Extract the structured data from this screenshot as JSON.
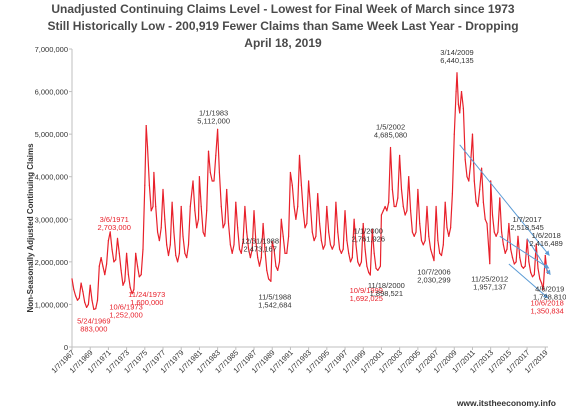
{
  "chart_data": {
    "type": "line",
    "title_lines": [
      "Unadjusted Continuing Claims Level - Lowest for Final Week of March since 1973",
      "Still Historically Low - 200,919 Fewer Claims than Same Week Last Year - Dropping",
      "April 18, 2019"
    ],
    "ylabel": "Non-Seasonally Adjusted Continuing Claims",
    "xlabel": "",
    "ylim": [
      0,
      7000000
    ],
    "y_ticks": [
      "0",
      "1,000,000",
      "2,000,000",
      "3,000,000",
      "4,000,000",
      "5,000,000",
      "6,000,000",
      "7,000,000"
    ],
    "x_ticks": [
      "1/7/1967",
      "1/7/1969",
      "1/7/1971",
      "1/7/1973",
      "1/7/1975",
      "1/7/1977",
      "1/7/1979",
      "1/7/1981",
      "1/7/1983",
      "1/7/1985",
      "1/7/1987",
      "1/7/1989",
      "1/7/1991",
      "1/7/1993",
      "1/7/1995",
      "1/7/1997",
      "1/7/1999",
      "1/7/2001",
      "1/7/2003",
      "1/7/2005",
      "1/7/2007",
      "1/7/2009",
      "1/7/2011",
      "1/7/2013",
      "1/7/2015",
      "1/7/2017",
      "1/7/2019"
    ],
    "grid": false,
    "series": [
      {
        "color": "#e8212b",
        "x": [
          1967.0,
          1967.2,
          1967.4,
          1967.6,
          1967.8,
          1968.0,
          1968.2,
          1968.4,
          1968.6,
          1968.8,
          1969.0,
          1969.2,
          1969.4,
          1969.6,
          1969.8,
          1970.0,
          1970.2,
          1970.4,
          1970.6,
          1970.8,
          1971.0,
          1971.2,
          1971.4,
          1971.6,
          1971.8,
          1972.0,
          1972.2,
          1972.4,
          1972.6,
          1972.8,
          1973.0,
          1973.2,
          1973.4,
          1973.6,
          1973.8,
          1974.0,
          1974.2,
          1974.4,
          1974.6,
          1974.8,
          1975.0,
          1975.15,
          1975.3,
          1975.5,
          1975.7,
          1975.9,
          1976.0,
          1976.2,
          1976.4,
          1976.6,
          1976.8,
          1977.0,
          1977.2,
          1977.4,
          1977.6,
          1977.8,
          1978.0,
          1978.2,
          1978.4,
          1978.6,
          1978.8,
          1979.0,
          1979.2,
          1979.4,
          1979.6,
          1979.8,
          1980.0,
          1980.3,
          1980.5,
          1980.7,
          1980.9,
          1981.0,
          1981.2,
          1981.4,
          1981.6,
          1981.8,
          1982.0,
          1982.2,
          1982.4,
          1982.6,
          1982.8,
          1983.0,
          1983.2,
          1983.4,
          1983.6,
          1983.8,
          1984.0,
          1984.2,
          1984.4,
          1984.6,
          1984.8,
          1985.0,
          1985.2,
          1985.4,
          1985.6,
          1985.8,
          1986.0,
          1986.2,
          1986.4,
          1986.6,
          1986.8,
          1987.0,
          1987.2,
          1987.4,
          1987.6,
          1987.8,
          1988.0,
          1988.2,
          1988.4,
          1988.6,
          1988.85,
          1989.0,
          1989.2,
          1989.4,
          1989.6,
          1989.8,
          1990.0,
          1990.2,
          1990.4,
          1990.6,
          1990.8,
          1991.0,
          1991.2,
          1991.4,
          1991.6,
          1991.8,
          1992.0,
          1992.2,
          1992.4,
          1992.6,
          1992.8,
          1993.0,
          1993.2,
          1993.4,
          1993.6,
          1993.8,
          1994.0,
          1994.2,
          1994.4,
          1994.6,
          1994.8,
          1995.0,
          1995.2,
          1995.4,
          1995.6,
          1995.8,
          1996.0,
          1996.2,
          1996.4,
          1996.6,
          1996.8,
          1997.0,
          1997.2,
          1997.4,
          1997.6,
          1997.8,
          1998.0,
          1998.2,
          1998.4,
          1998.6,
          1998.8,
          1999.0,
          1999.2,
          1999.4,
          1999.6,
          1999.77,
          2000.0,
          2000.2,
          2000.4,
          2000.6,
          2000.88,
          2001.0,
          2001.2,
          2001.4,
          2001.6,
          2001.8,
          2002.0,
          2002.2,
          2002.4,
          2002.6,
          2002.8,
          2003.0,
          2003.2,
          2003.4,
          2003.6,
          2003.8,
          2004.0,
          2004.2,
          2004.4,
          2004.6,
          2004.8,
          2005.0,
          2005.2,
          2005.4,
          2005.6,
          2005.8,
          2006.0,
          2006.2,
          2006.4,
          2006.77,
          2007.0,
          2007.2,
          2007.4,
          2007.6,
          2007.8,
          2008.0,
          2008.2,
          2008.4,
          2008.6,
          2008.8,
          2009.0,
          2009.2,
          2009.3,
          2009.45,
          2009.6,
          2009.8,
          2010.0,
          2010.2,
          2010.4,
          2010.6,
          2010.8,
          2011.0,
          2011.2,
          2011.4,
          2011.6,
          2011.8,
          2012.0,
          2012.2,
          2012.4,
          2012.6,
          2012.9,
          2013.0,
          2013.2,
          2013.4,
          2013.6,
          2013.8,
          2014.0,
          2014.2,
          2014.4,
          2014.6,
          2014.8,
          2015.0,
          2015.2,
          2015.4,
          2015.6,
          2015.8,
          2016.0,
          2016.2,
          2016.4,
          2016.6,
          2016.8,
          2017.0,
          2017.2,
          2017.4,
          2017.6,
          2017.8,
          2018.0,
          2018.2,
          2018.4,
          2018.6,
          2018.77,
          2019.0,
          2019.15,
          2019.27
        ],
        "values": [
          1600000,
          1350000,
          1200000,
          1100000,
          1150000,
          1500000,
          1300000,
          1050000,
          930000,
          1000000,
          1450000,
          1100000,
          883000,
          900000,
          1100000,
          1900000,
          2100000,
          1900000,
          1700000,
          1950000,
          2500000,
          2703000,
          2300000,
          2000000,
          2050000,
          2550000,
          2200000,
          1800000,
          1450000,
          1550000,
          2200000,
          1700000,
          1400000,
          1252000,
          1350000,
          2200000,
          1900000,
          1650000,
          1700000,
          2300000,
          3800000,
          5200000,
          4700000,
          3800000,
          3200000,
          3300000,
          4100000,
          3300000,
          2700000,
          2500000,
          2800000,
          3700000,
          3000000,
          2400000,
          2150000,
          2400000,
          3400000,
          2700000,
          2150000,
          2000000,
          2200000,
          3300000,
          2600000,
          2200000,
          2100000,
          2400000,
          3300000,
          3900000,
          3200000,
          2800000,
          3000000,
          4000000,
          3300000,
          2700000,
          2600000,
          3200000,
          4600000,
          4100000,
          3900000,
          3900000,
          4500000,
          5112000,
          4100000,
          3300000,
          2800000,
          2900000,
          3700000,
          2900000,
          2400000,
          2200000,
          2400000,
          3400000,
          2800000,
          2300000,
          2200000,
          2500000,
          3300000,
          2700000,
          2300000,
          2100000,
          2300000,
          3200000,
          2500000,
          2100000,
          1900000,
          2100000,
          2900000,
          2300000,
          1800000,
          1600000,
          1542684,
          2473167,
          2300000,
          1900000,
          1800000,
          2000000,
          3000000,
          2600000,
          2200000,
          2200000,
          2600000,
          4100000,
          3800000,
          3300000,
          3000000,
          3300000,
          4500000,
          3800000,
          3200000,
          2800000,
          2900000,
          3900000,
          3300000,
          2700000,
          2500000,
          2600000,
          3600000,
          2900000,
          2500000,
          2300000,
          2400000,
          3300000,
          2700000,
          2400000,
          2300000,
          2400000,
          3400000,
          2700000,
          2300000,
          2200000,
          2300000,
          3200000,
          2500000,
          2200000,
          2000000,
          2100000,
          3000000,
          2400000,
          2000000,
          1900000,
          2000000,
          2900000,
          2300000,
          1900000,
          1750000,
          1692025,
          2761926,
          2200000,
          1850000,
          1800000,
          1898521,
          3100000,
          3200000,
          3300000,
          3200000,
          3400000,
          4685080,
          3700000,
          3300000,
          3300000,
          3500000,
          4500000,
          3700000,
          3300000,
          3100000,
          3200000,
          4000000,
          3200000,
          2700000,
          2600000,
          2700000,
          3700000,
          2900000,
          2500000,
          2400000,
          2500000,
          3300000,
          2600000,
          2300000,
          2030299,
          3300000,
          2500000,
          2200000,
          2150000,
          2400000,
          3400000,
          2800000,
          2600000,
          2800000,
          3600000,
          5000000,
          6000000,
          6440135,
          5700000,
          5500000,
          6000000,
          5600000,
          4400000,
          4000000,
          3900000,
          4300000,
          5000000,
          3900000,
          3400000,
          3300000,
          3700000,
          4200000,
          3400000,
          3000000,
          2900000,
          1957137,
          3900000,
          3100000,
          2700000,
          2600000,
          2700000,
          3500000,
          2700000,
          2400000,
          2200000,
          2300000,
          2900000,
          2300000,
          2100000,
          1950000,
          2000000,
          2600000,
          2100000,
          1900000,
          1850000,
          1900000,
          2518545,
          2000000,
          1750000,
          1650000,
          1700000,
          2416489,
          1850000,
          1600000,
          1500000,
          1350834,
          2150000,
          1850000,
          1728810
        ]
      }
    ],
    "annotations": [
      {
        "label": "5/24/1969",
        "value": "883,000",
        "color": "#e8212b",
        "x": 1969.4,
        "y": 883000
      },
      {
        "label": "3/6/1971",
        "value": "2,703,000",
        "color": "#e8212b",
        "x": 1971.2,
        "y": 2703000
      },
      {
        "label": "10/6/1973",
        "value": "1,252,000",
        "color": "#e8212b",
        "x": 1973.6,
        "y": 1252000
      },
      {
        "label": "11/24/1973",
        "value": "1,600,000",
        "color": "#e8212b",
        "x": 1973.9,
        "y": 1600000
      },
      {
        "label": "1/1/1983",
        "value": "5,112,000",
        "color": "#333333",
        "x": 1983.0,
        "y": 5112000
      },
      {
        "label": "12/31/1988",
        "value": "2,473,167",
        "color": "#333333",
        "x": 1989.0,
        "y": 2473167
      },
      {
        "label": "11/5/1988",
        "value": "1,542,684",
        "color": "#333333",
        "x": 1988.85,
        "y": 1542684
      },
      {
        "label": "1/1/2000",
        "value": "2,761,926",
        "color": "#333333",
        "x": 2000.0,
        "y": 2761926
      },
      {
        "label": "10/9/1999",
        "value": "1,692,025",
        "color": "#e8212b",
        "x": 1999.77,
        "y": 1692025
      },
      {
        "label": "11/18/2000",
        "value": "1,898,521",
        "color": "#333333",
        "x": 2000.88,
        "y": 1898521
      },
      {
        "label": "1/5/2002",
        "value": "4,685,080",
        "color": "#333333",
        "x": 2002.0,
        "y": 4685080
      },
      {
        "label": "10/7/2006",
        "value": "2,030,299",
        "color": "#333333",
        "x": 2006.77,
        "y": 2030299
      },
      {
        "label": "3/14/2009",
        "value": "6,440,135",
        "color": "#333333",
        "x": 2009.3,
        "y": 6440135
      },
      {
        "label": "11/25/2012",
        "value": "1,957,137",
        "color": "#333333",
        "x": 2012.9,
        "y": 1957137
      },
      {
        "label": "1/7/2017",
        "value": "2,518,545",
        "color": "#333333",
        "x": 2017.0,
        "y": 2518545
      },
      {
        "label": "1/6/2018",
        "value": "2,416,489",
        "color": "#333333",
        "x": 2018.0,
        "y": 2416489
      },
      {
        "label": "10/6/2018",
        "value": "1,350,834",
        "color": "#e8212b",
        "x": 2018.77,
        "y": 1350834
      },
      {
        "label": "4/6/2019",
        "value": "1,728,810",
        "color": "#333333",
        "x": 2019.27,
        "y": 1728810
      }
    ],
    "trend_color": "#5b9bd5",
    "axis_color": "#bfbfbf",
    "tick_label_color": "#333333"
  },
  "source": "www.itstheeconomy.info"
}
